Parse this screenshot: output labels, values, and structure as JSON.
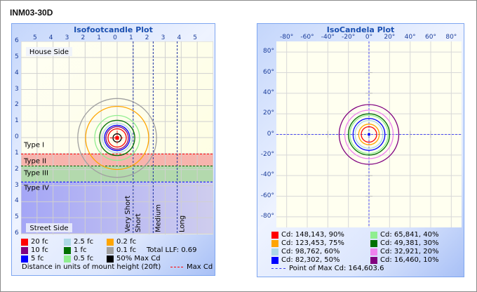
{
  "window_title": "INM03-30D",
  "isofootcandle": {
    "title": "Isofootcandle Plot",
    "x_tick_labels": [
      "5",
      "4",
      "3",
      "2",
      "1",
      "0",
      "1",
      "2",
      "3",
      "4",
      "5"
    ],
    "y_tick_labels": [
      "6",
      "5",
      "4",
      "3",
      "2",
      "1",
      "0",
      "1",
      "2",
      "3",
      "4",
      "5",
      "6"
    ],
    "house_side": "House Side",
    "street_side": "Street Side",
    "types": [
      {
        "label": "Type I",
        "from": 0,
        "to": 1,
        "color": "",
        "line": "#ff0000"
      },
      {
        "label": "Type II",
        "from": 1,
        "to": 1.75,
        "color": "#f7b4ad",
        "line": "#006000"
      },
      {
        "label": "Type III",
        "from": 1.75,
        "to": 2.75,
        "color": "#b3d9ad",
        "line": "#0000ff"
      },
      {
        "label": "Type IV",
        "from": 2.75,
        "to": 6,
        "color": "#aeb0f4",
        "line": ""
      }
    ],
    "distance_lines": [
      {
        "label": "Very Short",
        "at": 1
      },
      {
        "label": "Short",
        "at": 2.25
      },
      {
        "label": "Medium",
        "at": 3.75
      },
      {
        "label": "Long",
        "at": 6
      }
    ],
    "legend": [
      {
        "label": "20 fc",
        "color": "#ff0000"
      },
      {
        "label": "10 fc",
        "color": "#800080"
      },
      {
        "label": "5 fc",
        "color": "#0000ff"
      },
      {
        "label": "2.5 fc",
        "color": "#add8e6"
      },
      {
        "label": "1 fc",
        "color": "#007000"
      },
      {
        "label": "0.5 fc",
        "color": "#90ee90"
      },
      {
        "label": "0.2 fc",
        "color": "#ffa500"
      },
      {
        "label": "0.1 fc",
        "color": "#a0a0a0"
      },
      {
        "label": "50% Max Cd",
        "color": "#000000"
      }
    ],
    "total_llf": "Total LLF: 0.69",
    "distance_note": "Distance in units of mount height (20ft)",
    "max_cd_label": "Max Cd",
    "max_cd_color": "#ff0000"
  },
  "isocandela": {
    "title": "IsoCandela Plot",
    "x_tick_labels": [
      "-80°",
      "-60°",
      "-40°",
      "-20°",
      "0°",
      "20°",
      "40°",
      "60°",
      "80°"
    ],
    "y_tick_labels": [
      "80°",
      "60°",
      "40°",
      "20°",
      "0°",
      "-20°",
      "-40°",
      "-60°",
      "-80°"
    ],
    "legend": [
      {
        "label": "Cd: 148,143, 90%",
        "color": "#ff0000"
      },
      {
        "label": "Cd: 123,453, 75%",
        "color": "#ffa500"
      },
      {
        "label": "Cd: 98,762, 60%",
        "color": "#add8e6"
      },
      {
        "label": "Cd: 82,302, 50%",
        "color": "#0000ff"
      },
      {
        "label": "Cd: 65,841, 40%",
        "color": "#90ee90"
      },
      {
        "label": "Cd: 49,381, 30%",
        "color": "#007000"
      },
      {
        "label": "Cd: 32,921, 20%",
        "color": "#ee82ee"
      },
      {
        "label": "Cd: 16,460, 10%",
        "color": "#800080"
      }
    ],
    "max_point_label": "Point of Max Cd: 164,603.6"
  },
  "chart_data": [
    {
      "type": "contour",
      "title": "Isofootcandle Plot",
      "xlabel": "Distance in units of mount height (20ft)",
      "xlim": [
        -6,
        6
      ],
      "ylim": [
        -6,
        6
      ],
      "contours": [
        {
          "name": "0.1 fc",
          "radius": 2.46,
          "color": "#a0a0a0"
        },
        {
          "name": "0.2 fc",
          "radius": 1.97,
          "color": "#ffa500"
        },
        {
          "name": "0.5 fc",
          "radius": 1.4,
          "color": "#90ee90"
        },
        {
          "name": "1 fc",
          "radius": 1.1,
          "color": "#007000"
        },
        {
          "name": "2.5 fc",
          "radius": 0.92,
          "color": "#add8e6"
        },
        {
          "name": "5 fc",
          "radius": 0.79,
          "color": "#0000ff"
        },
        {
          "name": "10 fc",
          "radius": 0.7,
          "color": "#800080"
        },
        {
          "name": "20 fc",
          "radius": 0.57,
          "color": "#ff0000"
        },
        {
          "name": "50% Max Cd",
          "radius": 0.26,
          "color": "#000000"
        }
      ]
    },
    {
      "type": "contour",
      "title": "IsoCandela Plot",
      "xlim": [
        -90,
        90
      ],
      "ylim": [
        -90,
        90
      ],
      "contours": [
        {
          "name": "10%",
          "radius": 29,
          "color": "#800080"
        },
        {
          "name": "20%",
          "radius": 23.5,
          "color": "#ee82ee"
        },
        {
          "name": "30%",
          "radius": 20,
          "color": "#007000"
        },
        {
          "name": "40%",
          "radius": 18.5,
          "color": "#90ee90"
        },
        {
          "name": "50%",
          "radius": 15.5,
          "color": "#0000ff"
        },
        {
          "name": "60%",
          "radius": 13.5,
          "color": "#add8e6"
        },
        {
          "name": "75%",
          "radius": 10,
          "color": "#ffa500"
        },
        {
          "name": "90%",
          "radius": 7.5,
          "color": "#ff0000"
        }
      ]
    }
  ]
}
